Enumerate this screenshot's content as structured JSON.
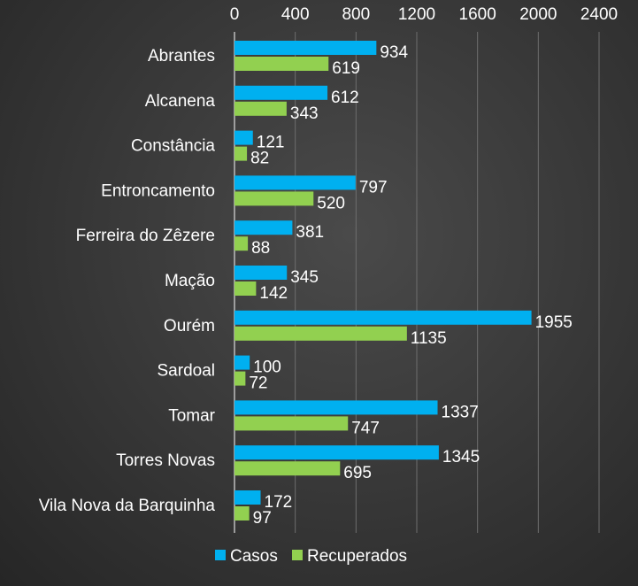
{
  "chart_data": {
    "type": "bar",
    "orientation": "horizontal",
    "categories": [
      "Abrantes",
      "Alcanena",
      "Constância",
      "Entroncamento",
      "Ferreira do Zêzere",
      "Mação",
      "Ourém",
      "Sardoal",
      "Tomar",
      "Torres Novas",
      "Vila Nova da Barquinha"
    ],
    "series": [
      {
        "name": "Casos",
        "color": "#00b0f0",
        "values": [
          934,
          612,
          121,
          797,
          381,
          345,
          1955,
          100,
          1337,
          1345,
          172
        ]
      },
      {
        "name": "Recuperados",
        "color": "#92d050",
        "values": [
          619,
          343,
          82,
          520,
          88,
          142,
          1135,
          72,
          747,
          695,
          97
        ]
      }
    ],
    "x_ticks": [
      "0",
      "400",
      "800",
      "1200",
      "1600",
      "2000",
      "2400"
    ],
    "xlim": [
      0,
      2400
    ],
    "grid": true,
    "legend_position": "bottom",
    "data_labels": true
  }
}
